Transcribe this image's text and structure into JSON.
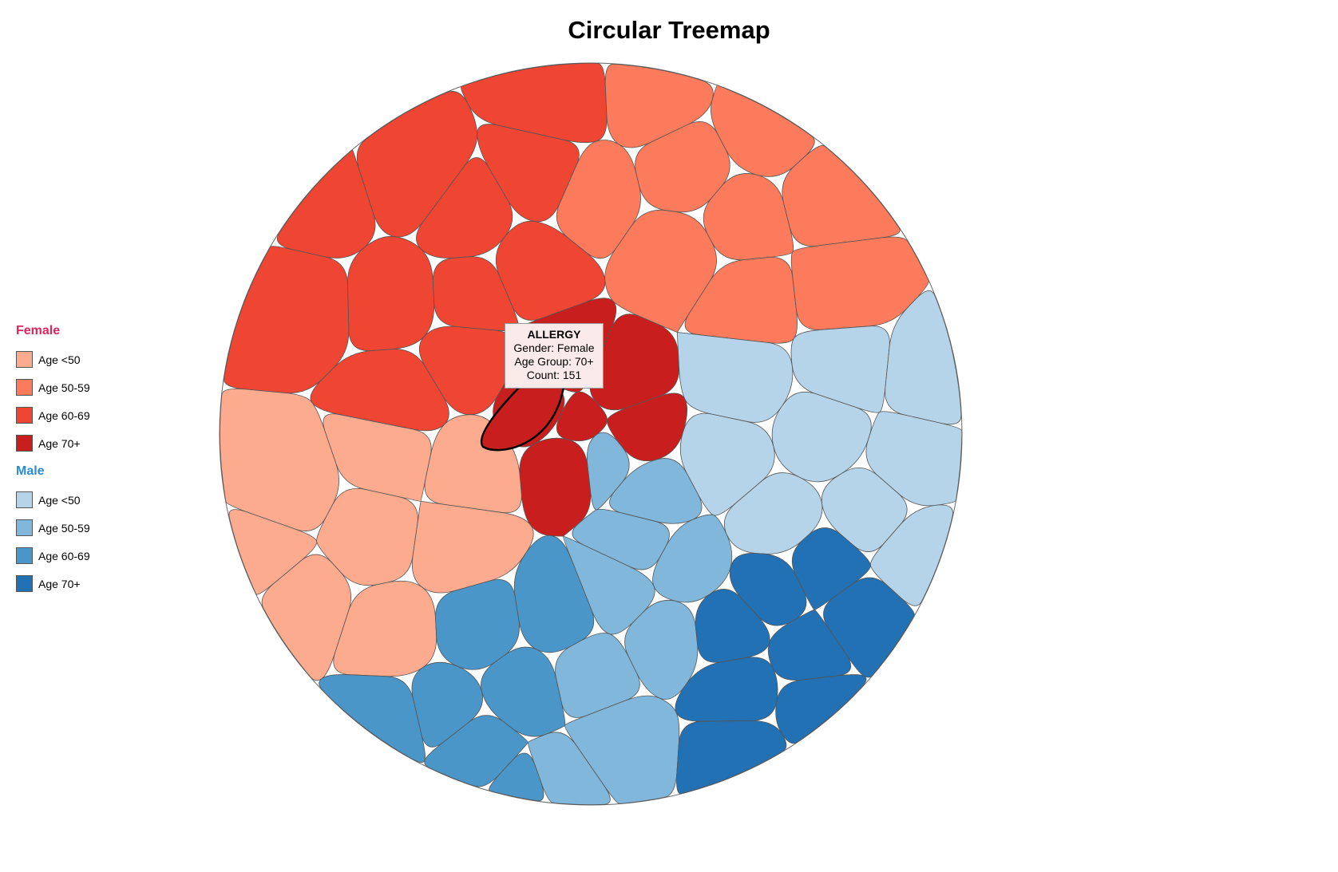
{
  "chart_data": {
    "type": "treemap",
    "title": "Circular Treemap",
    "groups": [
      {
        "name": "Female",
        "color": "#e0245e",
        "age_groups": [
          {
            "label": "Age <50",
            "color": "#fcab8f"
          },
          {
            "label": "Age 50-59",
            "color": "#fc7b5c"
          },
          {
            "label": "Age 60-69",
            "color": "#ef4533"
          },
          {
            "label": "Age 70+",
            "color": "#c91e1e"
          }
        ]
      },
      {
        "name": "Male",
        "color": "#2a8bd6",
        "age_groups": [
          {
            "label": "Age <50",
            "color": "#b6d4e9"
          },
          {
            "label": "Age 50-59",
            "color": "#81b7da"
          },
          {
            "label": "Age 60-69",
            "color": "#4a96c9"
          },
          {
            "label": "Age 70+",
            "color": "#2271b4"
          }
        ]
      }
    ],
    "tooltip": {
      "title": "ALLERGY",
      "gender": "Gender: Female",
      "age_group": "Age Group: 70+",
      "count": "Count: 151"
    }
  }
}
